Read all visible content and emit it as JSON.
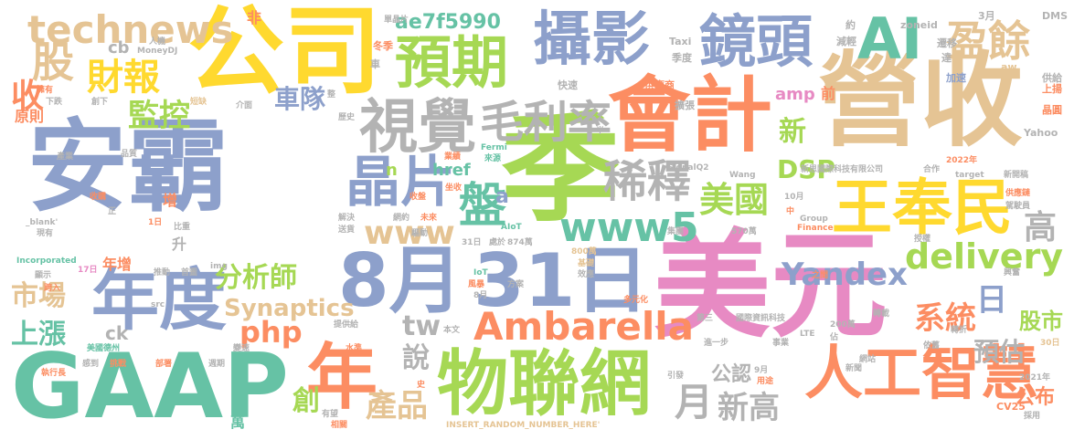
{
  "palette": {
    "green": "#66c2a5",
    "orange": "#fc8d62",
    "blue": "#8da0cb",
    "pink": "#e78ac3",
    "lime": "#a6d854",
    "yellow": "#ffd92f",
    "tan": "#e5c494",
    "gray": "#b3b3b3"
  },
  "words": [
    {
      "text": "安霸",
      "color": "blue"
    },
    {
      "text": "美元",
      "color": "pink"
    },
    {
      "text": "營收",
      "color": "tan"
    },
    {
      "text": "季",
      "color": "lime"
    },
    {
      "text": "公司",
      "color": "yellow"
    },
    {
      "text": "會計",
      "color": "orange"
    },
    {
      "text": "GAAP",
      "color": "green"
    },
    {
      "text": "8月",
      "color": "blue"
    },
    {
      "text": "31日",
      "color": "blue"
    },
    {
      "text": "年",
      "color": "orange"
    },
    {
      "text": "年度",
      "color": "blue"
    },
    {
      "text": "物聯網",
      "color": "lime"
    },
    {
      "text": "人工智慧",
      "color": "orange"
    },
    {
      "text": "王奉民",
      "color": "yellow"
    },
    {
      "text": "攝影",
      "color": "blue"
    },
    {
      "text": "鏡頭",
      "color": "blue"
    },
    {
      "text": "預期",
      "color": "lime"
    },
    {
      "text": "視覺",
      "color": "gray"
    },
    {
      "text": "毛利率",
      "color": "gray"
    },
    {
      "text": "晶片",
      "color": "blue"
    },
    {
      "text": "盤",
      "color": "green"
    },
    {
      "text": "Ambarella",
      "color": "orange"
    },
    {
      "text": "www5",
      "color": "green"
    },
    {
      "text": "稀釋",
      "color": "gray"
    },
    {
      "text": "美國",
      "color": "lime"
    },
    {
      "text": "AI",
      "color": "green"
    },
    {
      "text": "盈餘",
      "color": "tan"
    },
    {
      "text": "technews",
      "color": "tan"
    },
    {
      "text": "財報",
      "color": "yellow"
    },
    {
      "text": "股",
      "color": "tan"
    },
    {
      "text": "監控",
      "color": "lime"
    },
    {
      "text": "車隊",
      "color": "blue"
    },
    {
      "text": "收",
      "color": "orange"
    },
    {
      "text": "www",
      "color": "tan"
    },
    {
      "text": "DSP",
      "color": "lime"
    },
    {
      "text": "delivery",
      "color": "lime"
    },
    {
      "text": "Yandex",
      "color": "blue"
    },
    {
      "text": "分析師",
      "color": "lime"
    },
    {
      "text": "Synaptics",
      "color": "tan"
    },
    {
      "text": "市場",
      "color": "tan"
    },
    {
      "text": "上漲",
      "color": "green"
    },
    {
      "text": "php",
      "color": "orange"
    },
    {
      "text": "tw",
      "color": "gray"
    },
    {
      "text": "系統",
      "color": "orange"
    },
    {
      "text": "日",
      "color": "blue"
    },
    {
      "text": "高",
      "color": "gray"
    },
    {
      "text": "預估",
      "color": "gray"
    },
    {
      "text": "股市",
      "color": "lime"
    },
    {
      "text": "月",
      "color": "gray"
    },
    {
      "text": "新高",
      "color": "gray"
    },
    {
      "text": "產品",
      "color": "tan"
    },
    {
      "text": "創",
      "color": "lime"
    },
    {
      "text": "說",
      "color": "gray"
    },
    {
      "text": "公認",
      "color": "gray"
    },
    {
      "text": "公布",
      "color": "orange"
    },
    {
      "text": "新",
      "color": "lime"
    },
    {
      "text": "ae7f5990",
      "color": "green"
    },
    {
      "text": "amp",
      "color": "pink"
    },
    {
      "text": "href",
      "color": "green"
    },
    {
      "text": "cb",
      "color": "gray"
    },
    {
      "text": "ck",
      "color": "gray"
    },
    {
      "text": "原則",
      "color": "orange"
    },
    {
      "text": "年增",
      "color": "orange"
    },
    {
      "text": "增",
      "color": "orange"
    },
    {
      "text": "萬",
      "color": "green"
    },
    {
      "text": "前",
      "color": "orange"
    },
    {
      "text": "非",
      "color": "orange"
    },
    {
      "text": "a",
      "color": "blue"
    },
    {
      "text": "n",
      "color": "lime"
    },
    {
      "text": "升",
      "color": "gray"
    },
    {
      "text": "單晶片",
      "color": "gray"
    },
    {
      "text": "MoneyDJ",
      "color": "gray"
    },
    {
      "text": "人機",
      "color": "gray"
    },
    {
      "text": "約",
      "color": "gray"
    },
    {
      "text": "zoneid",
      "color": "gray"
    },
    {
      "text": "3月",
      "color": "gray"
    },
    {
      "text": "DMS",
      "color": "gray"
    },
    {
      "text": "冬季",
      "color": "orange"
    },
    {
      "text": "車",
      "color": "gray"
    },
    {
      "text": "減輕",
      "color": "gray"
    },
    {
      "text": "遷移",
      "color": "gray"
    },
    {
      "text": "Taxi",
      "color": "gray"
    },
    {
      "text": "季度",
      "color": "gray"
    },
    {
      "text": "達",
      "color": "gray"
    },
    {
      "text": "aw",
      "color": "tan"
    },
    {
      "text": "加速",
      "color": "blue"
    },
    {
      "text": "供給",
      "color": "gray"
    },
    {
      "text": "快速",
      "color": "gray"
    },
    {
      "text": "供應商",
      "color": "orange"
    },
    {
      "text": "擴張",
      "color": "gray"
    },
    {
      "text": "上揚",
      "color": "orange"
    },
    {
      "text": "晶圓",
      "color": "orange"
    },
    {
      "text": "擁有",
      "color": "orange"
    },
    {
      "text": "下跌",
      "color": "gray"
    },
    {
      "text": "創下",
      "color": "gray"
    },
    {
      "text": "短缺",
      "color": "tan"
    },
    {
      "text": "介面",
      "color": "gray"
    },
    {
      "text": "整",
      "color": "gray"
    },
    {
      "text": "歷史",
      "color": "gray"
    },
    {
      "text": "半",
      "color": "gray"
    },
    {
      "text": "Fermi",
      "color": "green"
    },
    {
      "text": "來源",
      "color": "green"
    },
    {
      "text": "Yahoo",
      "color": "gray"
    },
    {
      "text": "產業",
      "color": "gray"
    },
    {
      "text": "品質",
      "color": "gray"
    },
    {
      "text": "業績",
      "color": "orange"
    },
    {
      "text": "SignalQ2",
      "color": "gray"
    },
    {
      "text": "新思國際科技有限公司",
      "color": "gray"
    },
    {
      "text": "合作",
      "color": "gray"
    },
    {
      "text": "2022年",
      "color": "orange"
    },
    {
      "text": "Wang",
      "color": "gray"
    },
    {
      "text": "target",
      "color": "gray"
    },
    {
      "text": "新開稿",
      "color": "gray"
    },
    {
      "text": "坐收",
      "color": "orange"
    },
    {
      "text": "收購",
      "color": "orange"
    },
    {
      "text": "收盤",
      "color": "orange"
    },
    {
      "text": "供應鏈",
      "color": "orange"
    },
    {
      "text": "正",
      "color": "gray"
    },
    {
      "text": "10月",
      "color": "gray"
    },
    {
      "text": "駕駛員",
      "color": "gray"
    },
    {
      "text": "_blank'",
      "color": "gray"
    },
    {
      "text": "解決",
      "color": "gray"
    },
    {
      "text": "網約",
      "color": "gray"
    },
    {
      "text": "未來",
      "color": "orange"
    },
    {
      "text": "中",
      "color": "orange"
    },
    {
      "text": "Group",
      "color": "gray"
    },
    {
      "text": "1日",
      "color": "orange"
    },
    {
      "text": "比重",
      "color": "gray"
    },
    {
      "text": "現有",
      "color": "gray"
    },
    {
      "text": "送貨",
      "color": "gray"
    },
    {
      "text": "AIoT",
      "color": "green"
    },
    {
      "text": "Finance",
      "color": "orange"
    },
    {
      "text": "集團",
      "color": "gray"
    },
    {
      "text": "570萬",
      "color": "gray"
    },
    {
      "text": "授權",
      "color": "gray"
    },
    {
      "text": "驅動",
      "color": "gray"
    },
    {
      "text": "31日",
      "color": "gray"
    },
    {
      "text": "處於",
      "color": "gray"
    },
    {
      "text": "874萬",
      "color": "gray"
    },
    {
      "text": "800萬",
      "color": "tan"
    },
    {
      "text": "Incorporated",
      "color": "green"
    },
    {
      "text": "17日",
      "color": "pink"
    },
    {
      "text": "推動",
      "color": "gray"
    },
    {
      "text": "首圖",
      "color": "gray"
    },
    {
      "text": "img",
      "color": "gray"
    },
    {
      "text": "基礎",
      "color": "tan"
    },
    {
      "text": "興奮",
      "color": "gray"
    },
    {
      "text": "顯示",
      "color": "gray"
    },
    {
      "text": "IoT",
      "color": "green"
    },
    {
      "text": "效應",
      "color": "gray"
    },
    {
      "text": "之間",
      "color": "orange"
    },
    {
      "text": "風暴",
      "color": "orange"
    },
    {
      "text": "方案",
      "color": "gray"
    },
    {
      "text": "跨入",
      "color": "orange"
    },
    {
      "text": "src",
      "color": "gray"
    },
    {
      "text": "8月",
      "color": "gray"
    },
    {
      "text": "多元化",
      "color": "orange"
    },
    {
      "text": "提供給",
      "color": "gray"
    },
    {
      "text": "第三",
      "color": "gray"
    },
    {
      "text": "國際資訊科技",
      "color": "gray"
    },
    {
      "text": "200萬",
      "color": "gray"
    },
    {
      "text": "本文",
      "color": "gray"
    },
    {
      "text": "轉載",
      "color": "gray"
    },
    {
      "text": "轉折",
      "color": "gray"
    },
    {
      "text": "美國德州",
      "color": "green"
    },
    {
      "text": "水準",
      "color": "orange"
    },
    {
      "text": "進一步",
      "color": "gray"
    },
    {
      "text": "事業",
      "color": "gray"
    },
    {
      "text": "LTE",
      "color": "gray"
    },
    {
      "text": "佔",
      "color": "gray"
    },
    {
      "text": "依舊",
      "color": "gray"
    },
    {
      "text": "30日",
      "color": "tan"
    },
    {
      "text": "感到",
      "color": "gray"
    },
    {
      "text": "變速",
      "color": "gray"
    },
    {
      "text": "網站",
      "color": "gray"
    },
    {
      "text": "執行長",
      "color": "orange"
    },
    {
      "text": "挑戰",
      "color": "orange"
    },
    {
      "text": "部署",
      "color": "orange"
    },
    {
      "text": "週期",
      "color": "gray"
    },
    {
      "text": "史",
      "color": "orange"
    },
    {
      "text": "引發",
      "color": "gray"
    },
    {
      "text": "9月",
      "color": "gray"
    },
    {
      "text": "用途",
      "color": "orange"
    },
    {
      "text": "新聞",
      "color": "gray"
    },
    {
      "text": "2021年",
      "color": "gray"
    },
    {
      "text": "CV25",
      "color": "orange"
    },
    {
      "text": "採用",
      "color": "gray"
    },
    {
      "text": "有望",
      "color": "gray"
    },
    {
      "text": "相關",
      "color": "orange"
    },
    {
      "text": "INSERT_RANDOM_NUMBER_HERE'",
      "color": "tan"
    }
  ]
}
